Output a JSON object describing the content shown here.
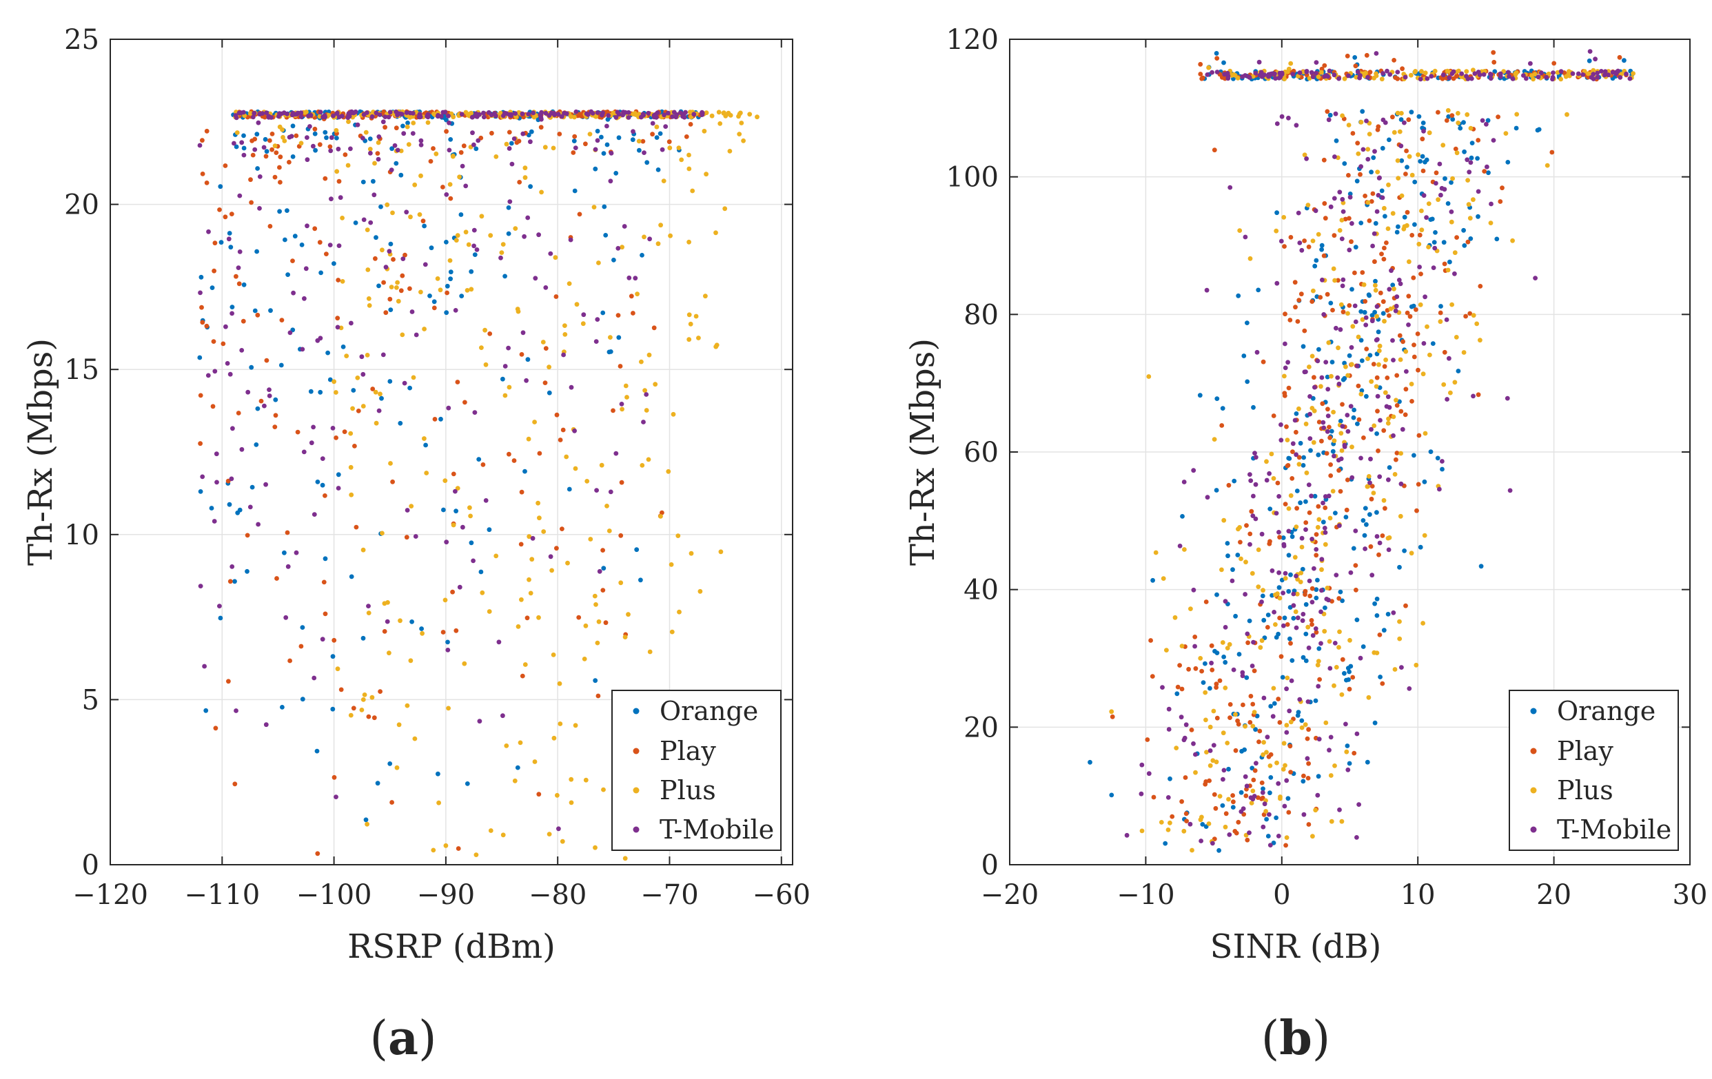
{
  "charts": [
    {
      "id": "a",
      "panel_label": {
        "open": "(",
        "letter": "a",
        "close": ")"
      },
      "type": "scatter",
      "xlabel": "RSRP  (dBm)",
      "ylabel": "Th-Rx  (Mbps)",
      "xlim": [
        -120,
        -59
      ],
      "ylim": [
        0,
        25
      ],
      "xticks": [
        -120,
        -110,
        -100,
        -90,
        -80,
        -70,
        -60
      ],
      "xtick_labels": [
        "−120",
        "−110",
        "−100",
        "−90",
        "−80",
        "−70",
        "−60"
      ],
      "yticks": [
        0,
        5,
        10,
        15,
        20,
        25
      ],
      "ytick_labels": [
        "0",
        "5",
        "10",
        "15",
        "20",
        "25"
      ],
      "grid": true,
      "legend": "lower-right",
      "series": [
        {
          "name": "Orange",
          "color": "#0072BD"
        },
        {
          "name": "Play",
          "color": "#D95319"
        },
        {
          "name": "Plus",
          "color": "#EDB120"
        },
        {
          "name": "T-Mobile",
          "color": "#7E2F8E"
        }
      ]
    },
    {
      "id": "b",
      "panel_label": {
        "open": "(",
        "letter": "b",
        "close": ")"
      },
      "type": "scatter",
      "xlabel": "SINR  (dB)",
      "ylabel": "Th-Rx  (Mbps)",
      "xlim": [
        -20,
        30
      ],
      "ylim": [
        0,
        120
      ],
      "xticks": [
        -20,
        -10,
        0,
        10,
        20,
        30
      ],
      "xtick_labels": [
        "−20",
        "−10",
        "0",
        "10",
        "20",
        "30"
      ],
      "yticks": [
        0,
        20,
        40,
        60,
        80,
        100,
        120
      ],
      "ytick_labels": [
        "0",
        "20",
        "40",
        "60",
        "80",
        "100",
        "120"
      ],
      "grid": true,
      "legend": "lower-right",
      "series": [
        {
          "name": "Orange",
          "color": "#0072BD"
        },
        {
          "name": "Play",
          "color": "#D95319"
        },
        {
          "name": "Plus",
          "color": "#EDB120"
        },
        {
          "name": "T-Mobile",
          "color": "#7E2F8E"
        }
      ]
    }
  ]
}
